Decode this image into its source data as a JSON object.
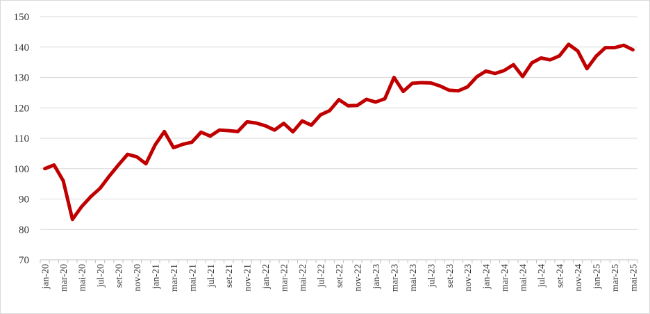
{
  "chart_data": {
    "type": "line",
    "title": "",
    "xlabel": "",
    "ylabel": "",
    "ylim": [
      70,
      150
    ],
    "yticks": [
      70,
      80,
      90,
      100,
      110,
      120,
      130,
      140,
      150
    ],
    "grid": true,
    "legend": "none",
    "x": [
      "jan-20",
      "fev-20",
      "mar-20",
      "abr-20",
      "mai-20",
      "jun-20",
      "jul-20",
      "ago-20",
      "set-20",
      "out-20",
      "nov-20",
      "dez-20",
      "jan-21",
      "fev-21",
      "mar-21",
      "abr-21",
      "mai-21",
      "jun-21",
      "jul-21",
      "ago-21",
      "set-21",
      "out-21",
      "nov-21",
      "dez-21",
      "jan-22",
      "fev-22",
      "mar-22",
      "abr-22",
      "mai-22",
      "jun-22",
      "jul-22",
      "ago-22",
      "set-22",
      "out-22",
      "nov-22",
      "dez-22",
      "jan-23",
      "fev-23",
      "mar-23",
      "abr-23",
      "mai-23",
      "jun-23",
      "jul-23",
      "ago-23",
      "set-23",
      "out-23",
      "nov-23",
      "dez-23",
      "jan-24",
      "fev-24",
      "mar-24",
      "abr-24",
      "mai-24",
      "jun-24",
      "jul-24",
      "ago-24",
      "set-24",
      "out-24",
      "nov-24",
      "dez-24",
      "jan-25",
      "fev-25",
      "mar-25",
      "abr-25",
      "mai-25"
    ],
    "xtick_labels": [
      "jan-20",
      "mar-20",
      "mai-20",
      "jul-20",
      "set-20",
      "nov-20",
      "jan-21",
      "mar-21",
      "mai-21",
      "jul-21",
      "set-21",
      "nov-21",
      "jan-22",
      "mar-22",
      "mai-22",
      "jul-22",
      "set-22",
      "nov-22",
      "jan-23",
      "mar-23",
      "mai-23",
      "jul-23",
      "set-23",
      "nov-23",
      "jan-24",
      "mar-24",
      "mai-24",
      "jul-24",
      "set-24",
      "nov-24",
      "jan-25",
      "mar-25",
      "mai-25"
    ],
    "series": [
      {
        "color": "#c00000",
        "values": [
          100,
          101.2,
          96,
          83.3,
          87.5,
          90.8,
          93.5,
          97.5,
          101.2,
          104.7,
          103.9,
          101.6,
          107.8,
          112.2,
          106.9,
          108,
          108.7,
          112,
          110.7,
          112.7,
          112.5,
          112.2,
          115.4,
          115,
          114.1,
          112.7,
          114.9,
          112.1,
          115.7,
          114.3,
          117.7,
          119.1,
          122.7,
          120.7,
          120.8,
          122.8,
          121.9,
          123,
          130,
          125.4,
          128.1,
          128.3,
          128.2,
          127.2,
          125.8,
          125.6,
          126.9,
          130.2,
          132.1,
          131.3,
          132.3,
          134.2,
          130.3,
          134.8,
          136.4,
          135.8,
          137.1,
          140.9,
          138.7,
          132.9,
          137,
          139.8,
          139.8,
          140.6,
          139.1
        ]
      }
    ]
  }
}
